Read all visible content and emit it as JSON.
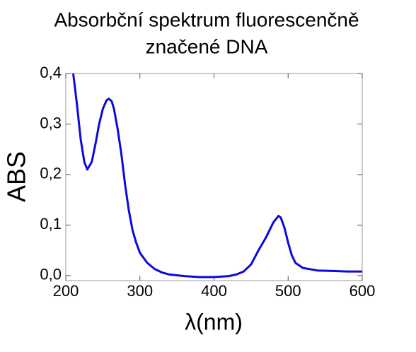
{
  "chart_data": {
    "type": "line",
    "title": [
      "Absorbční spektrum fluorescenčně",
      "značené DNA"
    ],
    "x_label": "λ(nm)",
    "y_label": "ABS",
    "x": [
      210,
      215,
      220,
      225,
      229,
      235,
      240,
      245,
      250,
      255,
      258,
      262,
      265,
      270,
      275,
      280,
      285,
      290,
      295,
      300,
      310,
      320,
      330,
      340,
      360,
      380,
      400,
      420,
      430,
      440,
      450,
      460,
      470,
      480,
      487,
      490,
      495,
      500,
      505,
      510,
      520,
      540,
      560,
      580,
      600
    ],
    "series": [
      {
        "name": "ABS",
        "color": "#0a0adc",
        "values": [
          0.4,
          0.34,
          0.27,
          0.225,
          0.21,
          0.225,
          0.26,
          0.3,
          0.33,
          0.347,
          0.35,
          0.345,
          0.33,
          0.29,
          0.24,
          0.18,
          0.13,
          0.09,
          0.065,
          0.045,
          0.025,
          0.013,
          0.006,
          0.002,
          -0.001,
          -0.003,
          -0.003,
          -0.001,
          0.002,
          0.008,
          0.022,
          0.05,
          0.075,
          0.105,
          0.118,
          0.115,
          0.095,
          0.065,
          0.04,
          0.025,
          0.015,
          0.01,
          0.009,
          0.008,
          0.008
        ]
      }
    ],
    "xlim": [
      200,
      600
    ],
    "xticks": [
      200,
      300,
      400,
      500,
      600
    ],
    "ylim": [
      -0.01,
      0.4
    ],
    "yticks": [
      {
        "value": 0,
        "label": "0,0"
      },
      {
        "value": 0.1,
        "label": "0,1"
      },
      {
        "value": 0.2,
        "label": "0,2"
      },
      {
        "value": 0.3,
        "label": "0,3"
      },
      {
        "value": 0.4,
        "label": "0,4"
      }
    ],
    "grid": false
  }
}
